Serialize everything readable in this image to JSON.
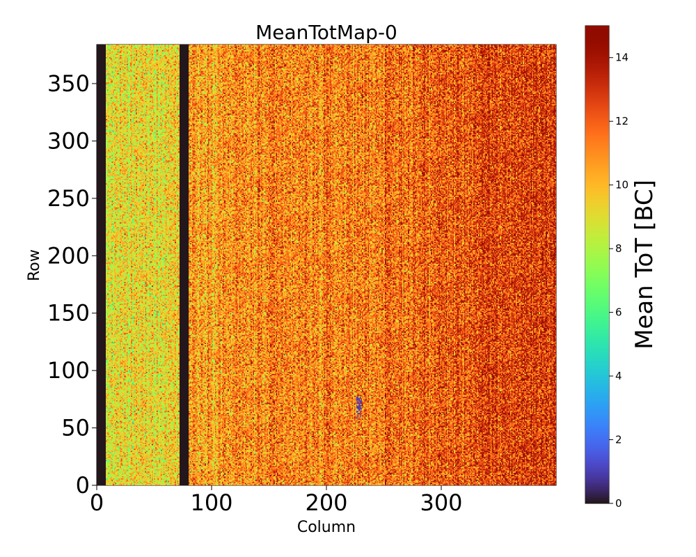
{
  "chart_data": {
    "type": "heatmap",
    "title": "MeanTotMap-0",
    "xlabel": "Column",
    "ylabel": "Row",
    "xlim": [
      0,
      400
    ],
    "ylim": [
      0,
      384
    ],
    "x_ticks": [
      0,
      100,
      200,
      300
    ],
    "y_ticks": [
      0,
      50,
      100,
      150,
      200,
      250,
      300,
      350
    ],
    "x_tick_labels": [
      "0",
      "100",
      "200",
      "300"
    ],
    "y_tick_labels": [
      "0",
      "50",
      "100",
      "150",
      "200",
      "250",
      "300",
      "350"
    ],
    "colormap": "turbo",
    "colorbar": {
      "label": "Mean ToT [BC]",
      "range": [
        0,
        15
      ],
      "ticks": [
        0,
        2,
        4,
        6,
        8,
        10,
        12,
        14
      ],
      "tick_labels": [
        "0",
        "2",
        "4",
        "6",
        "8",
        "10",
        "12",
        "14"
      ]
    },
    "grid": false,
    "dead_column_ranges": [
      [
        0,
        8
      ],
      [
        72,
        80
      ]
    ],
    "dead_value": 0,
    "mean_value_trend": [
      {
        "column": 8,
        "value": 9.0
      },
      {
        "column": 70,
        "value": 9.6
      },
      {
        "column": 80,
        "value": 10.8
      },
      {
        "column": 200,
        "value": 11.2
      },
      {
        "column": 260,
        "value": 11.6
      },
      {
        "column": 330,
        "value": 12.4
      },
      {
        "column": 400,
        "value": 13.0
      }
    ],
    "cluster_artifact": {
      "column": 228,
      "rows": [
        58,
        78
      ],
      "value": 1.0
    }
  }
}
